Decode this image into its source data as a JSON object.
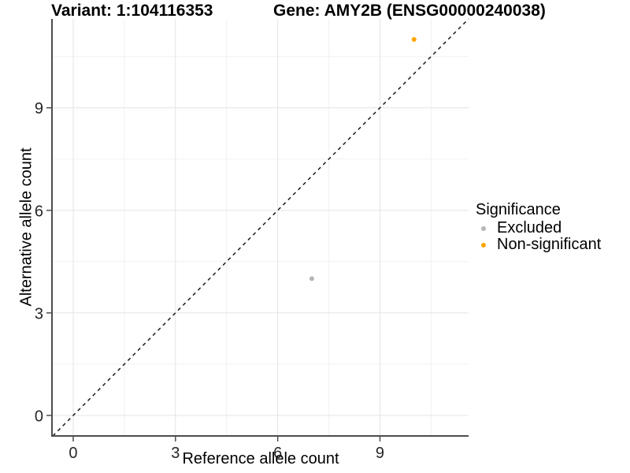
{
  "chart_data": {
    "type": "scatter",
    "titles": {
      "left": "Variant: 1:104116353",
      "right": "Gene: AMY2B (ENSG00000240038)"
    },
    "xlabel": "Reference allele count",
    "ylabel": "Alternative allele count",
    "xlim": [
      -0.6,
      11.6
    ],
    "ylim": [
      -0.6,
      11.6
    ],
    "x_ticks": [
      0,
      3,
      6,
      9
    ],
    "y_ticks": [
      0,
      3,
      6,
      9
    ],
    "x_minor_ticks": [
      1.5,
      4.5,
      7.5,
      10.5
    ],
    "y_minor_ticks": [
      1.5,
      4.5,
      7.5,
      10.5
    ],
    "grid": "major+minor",
    "identity_line": {
      "slope": 1,
      "intercept": 0,
      "style": "dashed",
      "color": "#1A1A1A"
    },
    "series": [
      {
        "name": "Excluded",
        "color": "#B5B5B5",
        "points": [
          {
            "x": 7,
            "y": 4
          }
        ]
      },
      {
        "name": "Non-significant",
        "color": "#FFA500",
        "points": [
          {
            "x": 10,
            "y": 11
          }
        ]
      }
    ],
    "legend": {
      "title": "Significance",
      "position": "right"
    },
    "style": {
      "background": "#FFFFFF",
      "axis_line_color": "#4D4D4D",
      "grid_major_color": "#E4E4E4",
      "grid_minor_color": "#F1F1F1",
      "tick_label_color": "#262626",
      "point_radius": 3
    }
  }
}
